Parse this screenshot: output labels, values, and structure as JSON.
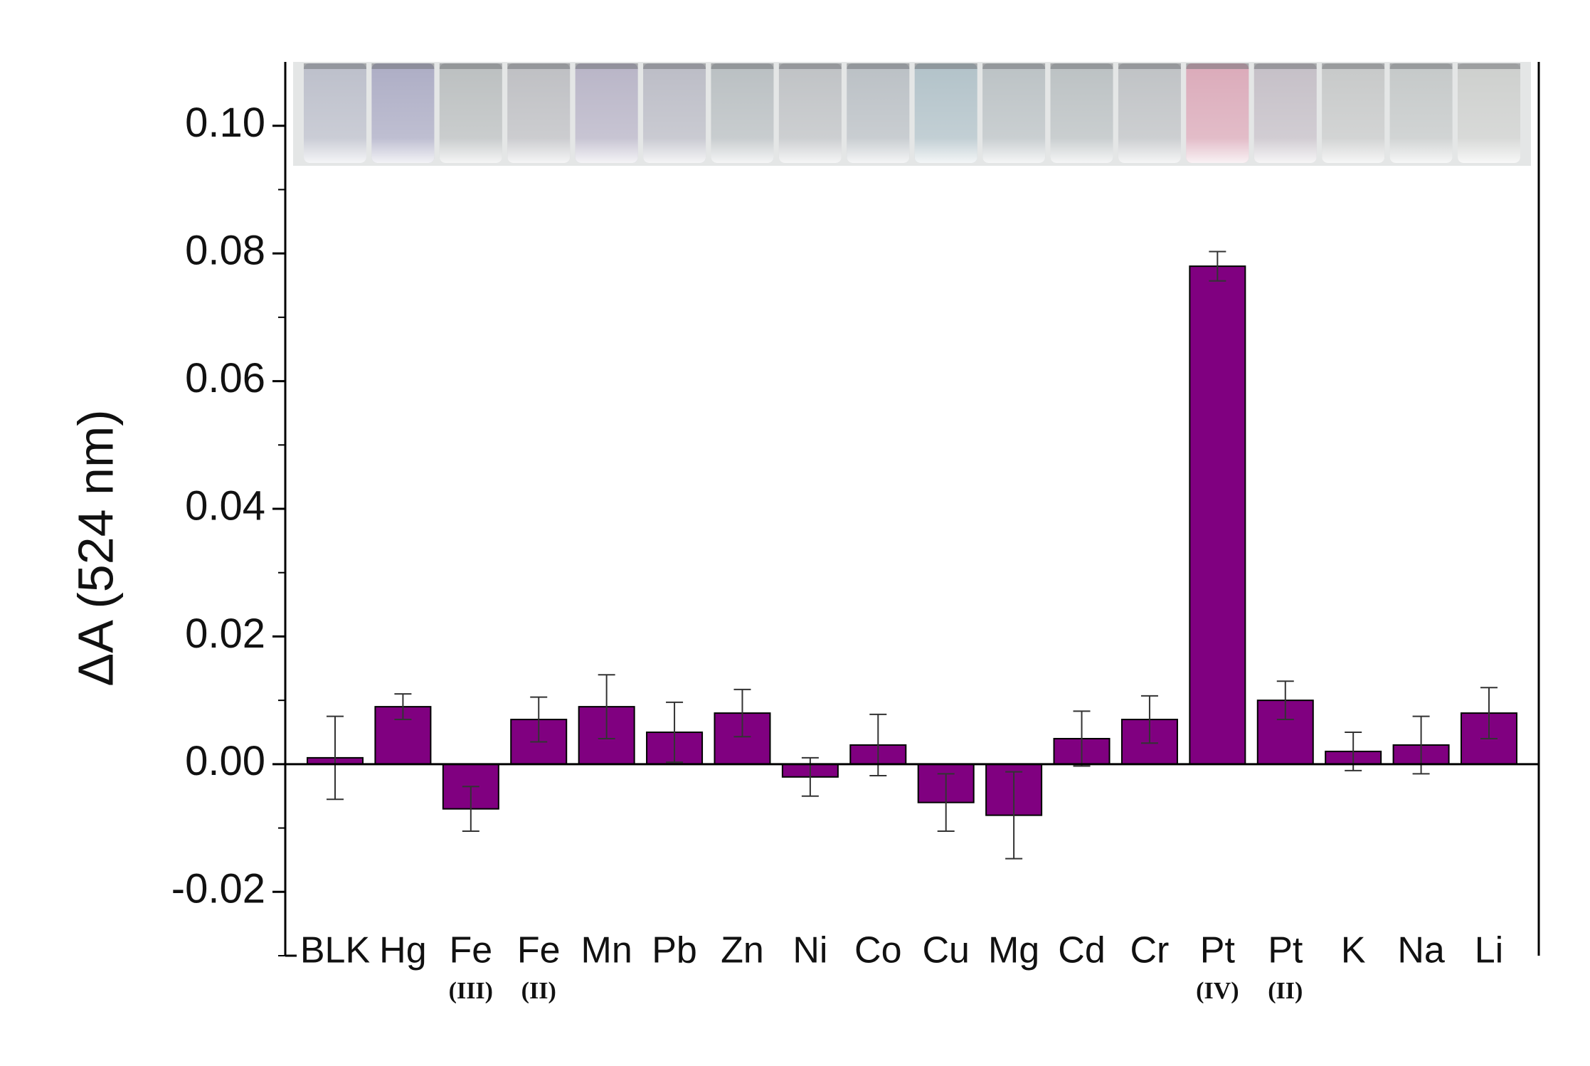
{
  "chart_data": {
    "type": "bar",
    "y_label": "ΔA (524 nm)",
    "categories": [
      "BLK",
      "Hg",
      "Fe",
      "Fe",
      "Mn",
      "Pb",
      "Zn",
      "Ni",
      "Co",
      "Cu",
      "Mg",
      "Cd",
      "Cr",
      "Pt",
      "Pt",
      "K",
      "Na",
      "Li"
    ],
    "category_sublabels": [
      null,
      null,
      "(III)",
      "(II)",
      null,
      null,
      null,
      null,
      null,
      null,
      null,
      null,
      null,
      "(IV)",
      "(II)",
      null,
      null,
      null
    ],
    "values": [
      0.001,
      0.009,
      -0.007,
      0.007,
      0.009,
      0.005,
      0.008,
      -0.002,
      0.003,
      -0.006,
      -0.008,
      0.004,
      0.007,
      0.078,
      0.01,
      0.002,
      0.003,
      0.008
    ],
    "errors": [
      0.0065,
      0.002,
      0.0035,
      0.0035,
      0.005,
      0.0047,
      0.0037,
      0.003,
      0.0048,
      0.0045,
      0.0068,
      0.0043,
      0.0037,
      0.0023,
      0.003,
      0.003,
      0.0045,
      0.004
    ],
    "color": "#800080",
    "ylim": [
      -0.03,
      0.11
    ],
    "yticks": [
      -0.02,
      {
        "value": 0,
        "label": "0.00"
      },
      0.02,
      0.04,
      0.06,
      0.08,
      {
        "value": 0.1,
        "label": "0.10"
      }
    ],
    "yticks_minor": [
      -0.03,
      -0.01,
      0.01,
      0.03,
      0.05,
      0.07,
      0.09
    ],
    "grid": false
  }
}
